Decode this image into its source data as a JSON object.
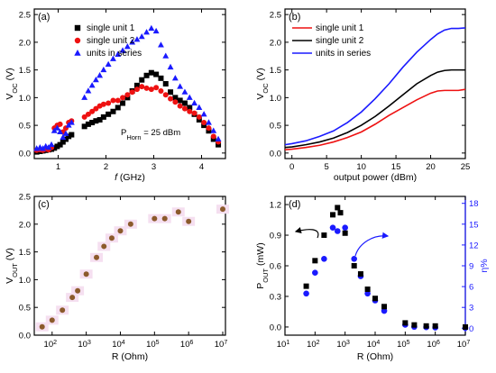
{
  "chart_data": [
    {
      "panel": "(a)",
      "type": "scatter",
      "xlabel": "f (GHz)",
      "ylabel": "V_OC (V)",
      "xlim": [
        0.5,
        4.5
      ],
      "ylim": [
        -0.1,
        2.6
      ],
      "xticks": [
        "1",
        "2",
        "3",
        "4"
      ],
      "yticks": [
        "0.0",
        "0.5",
        "1.0",
        "1.5",
        "2.0",
        "2.5"
      ],
      "annotation": "P_Horn = 25 dBm",
      "legend": "top-left",
      "series": [
        {
          "name": "single unit 1",
          "color": "#000000",
          "marker": "square",
          "x": [
            0.55,
            0.62,
            0.68,
            0.74,
            0.8,
            0.86,
            0.92,
            0.98,
            1.04,
            1.1,
            1.16,
            1.22,
            1.28,
            1.55,
            1.63,
            1.71,
            1.79,
            1.87,
            1.95,
            2.05,
            2.15,
            2.25,
            2.35,
            2.45,
            2.55,
            2.65,
            2.75,
            2.85,
            2.95,
            3.05,
            3.15,
            3.25,
            3.35,
            3.45,
            3.55,
            3.65,
            3.75,
            3.85,
            3.95,
            4.05,
            4.15,
            4.25,
            4.35
          ],
          "y": [
            0.02,
            0.03,
            0.04,
            0.05,
            0.06,
            0.07,
            0.09,
            0.12,
            0.15,
            0.2,
            0.25,
            0.3,
            0.33,
            0.48,
            0.52,
            0.55,
            0.58,
            0.6,
            0.65,
            0.7,
            0.75,
            0.82,
            0.9,
            1.0,
            1.12,
            1.22,
            1.32,
            1.4,
            1.45,
            1.42,
            1.35,
            1.25,
            1.1,
            1.0,
            0.95,
            0.9,
            0.82,
            0.7,
            0.6,
            0.5,
            0.4,
            0.25,
            0.15
          ]
        },
        {
          "name": "single unit 2",
          "color": "#ee1111",
          "marker": "circle",
          "x": [
            0.55,
            0.62,
            0.68,
            0.74,
            0.8,
            0.86,
            0.92,
            0.98,
            1.04,
            1.1,
            1.16,
            1.22,
            1.28,
            1.55,
            1.63,
            1.71,
            1.79,
            1.87,
            1.95,
            2.05,
            2.15,
            2.25,
            2.35,
            2.45,
            2.55,
            2.65,
            2.75,
            2.85,
            2.95,
            3.05,
            3.15,
            3.25,
            3.35,
            3.45,
            3.55,
            3.65,
            3.75,
            3.85,
            3.95,
            4.05,
            4.15,
            4.25,
            4.35
          ],
          "y": [
            0.05,
            0.06,
            0.05,
            0.07,
            0.06,
            0.1,
            0.45,
            0.5,
            0.52,
            0.38,
            0.45,
            0.55,
            0.58,
            0.65,
            0.7,
            0.75,
            0.8,
            0.85,
            0.88,
            0.9,
            0.95,
            0.95,
            1.0,
            1.05,
            1.1,
            1.15,
            1.2,
            1.17,
            1.15,
            1.18,
            1.12,
            1.05,
            0.98,
            0.92,
            0.85,
            0.8,
            0.75,
            0.72,
            0.65,
            0.55,
            0.45,
            0.3,
            0.2
          ]
        },
        {
          "name": "units in series",
          "color": "#1a1aff",
          "marker": "triangle",
          "x": [
            0.55,
            0.62,
            0.68,
            0.74,
            0.8,
            0.86,
            0.92,
            0.98,
            1.04,
            1.1,
            1.16,
            1.22,
            1.28,
            1.55,
            1.63,
            1.71,
            1.79,
            1.87,
            1.95,
            2.05,
            2.15,
            2.25,
            2.35,
            2.45,
            2.55,
            2.65,
            2.75,
            2.85,
            2.95,
            3.05,
            3.15,
            3.25,
            3.35,
            3.45,
            3.55,
            3.65,
            3.75,
            3.85,
            3.95,
            4.05,
            4.15,
            4.25,
            4.35
          ],
          "y": [
            0.08,
            0.1,
            0.08,
            0.12,
            0.1,
            0.15,
            0.4,
            0.45,
            0.38,
            0.28,
            0.35,
            0.5,
            0.55,
            1.0,
            1.12,
            1.22,
            1.32,
            1.4,
            1.5,
            1.6,
            1.7,
            1.78,
            1.85,
            1.92,
            2.0,
            2.05,
            2.1,
            2.18,
            2.25,
            2.2,
            1.95,
            1.75,
            1.55,
            1.35,
            1.2,
            1.1,
            1.0,
            0.9,
            0.82,
            0.7,
            0.55,
            0.4,
            0.25
          ]
        }
      ]
    },
    {
      "panel": "(b)",
      "type": "line",
      "xlabel": "output power (dBm)",
      "ylabel": "V_OC (V)",
      "xlim": [
        -1,
        25
      ],
      "ylim": [
        -0.1,
        2.6
      ],
      "xticks": [
        "0",
        "5",
        "10",
        "15",
        "20",
        "25"
      ],
      "yticks": [
        "0.0",
        "0.5",
        "1.0",
        "1.5",
        "2.0",
        "2.5"
      ],
      "legend": "top-left",
      "series": [
        {
          "name": "single unit 1",
          "color": "#ee1111",
          "x": [
            -1,
            0,
            2,
            4,
            6,
            8,
            10,
            12,
            14,
            16,
            18,
            20,
            21,
            22,
            23,
            24,
            25
          ],
          "y": [
            0.06,
            0.07,
            0.1,
            0.14,
            0.2,
            0.28,
            0.38,
            0.52,
            0.68,
            0.82,
            0.96,
            1.08,
            1.12,
            1.13,
            1.13,
            1.13,
            1.15
          ]
        },
        {
          "name": "single unit 2",
          "color": "#000000",
          "x": [
            -1,
            0,
            2,
            4,
            6,
            8,
            10,
            12,
            14,
            16,
            18,
            20,
            21,
            22,
            23,
            24,
            25
          ],
          "y": [
            0.1,
            0.11,
            0.15,
            0.2,
            0.27,
            0.37,
            0.5,
            0.66,
            0.85,
            1.05,
            1.25,
            1.4,
            1.46,
            1.49,
            1.5,
            1.5,
            1.5
          ]
        },
        {
          "name": "units in series",
          "color": "#1a1aff",
          "x": [
            -1,
            0,
            2,
            4,
            6,
            8,
            10,
            12,
            14,
            16,
            18,
            20,
            21,
            22,
            23,
            24,
            25
          ],
          "y": [
            0.15,
            0.17,
            0.22,
            0.3,
            0.4,
            0.55,
            0.74,
            0.98,
            1.25,
            1.55,
            1.82,
            2.05,
            2.15,
            2.22,
            2.25,
            2.25,
            2.26
          ]
        }
      ]
    },
    {
      "panel": "(c)",
      "type": "scatter",
      "xlabel": "R (Ohm)",
      "ylabel": "V_OUT (V)",
      "xscale": "log",
      "xlim": [
        30,
        12000000
      ],
      "ylim": [
        0,
        2.5
      ],
      "xtick_exponents": [
        2,
        3,
        4,
        5,
        6,
        7
      ],
      "yticks": [
        "0.0",
        "0.5",
        "1.0",
        "1.5",
        "2.0",
        "2.5"
      ],
      "series": [
        {
          "color": "#8b5a2b",
          "marker": "circle",
          "x": [
            51,
            100,
            200,
            390,
            560,
            1000,
            2000,
            3300,
            5600,
            10000,
            20000,
            100000,
            200000,
            500000,
            1000000,
            10000000
          ],
          "y": [
            0.15,
            0.27,
            0.45,
            0.68,
            0.8,
            1.1,
            1.4,
            1.6,
            1.75,
            1.88,
            2.0,
            2.1,
            2.1,
            2.22,
            2.05,
            2.27
          ]
        }
      ]
    },
    {
      "panel": "(d)",
      "type": "scatter",
      "xlabel": "R (Ohm)",
      "ylabel": "P_OUT (mW)",
      "ylabel_right": "η%",
      "xscale": "log",
      "xlim": [
        10,
        10000000
      ],
      "ylim": [
        -0.08,
        1.28
      ],
      "ylim_right": [
        -1,
        19
      ],
      "xtick_exponents": [
        1,
        2,
        3,
        4,
        5,
        6,
        7
      ],
      "yticks": [
        "0.0",
        "0.3",
        "0.6",
        "0.9",
        "1.2"
      ],
      "yticks_right": [
        "0",
        "3",
        "6",
        "9",
        "12",
        "15",
        "18"
      ],
      "series": [
        {
          "color": "#000000",
          "marker": "square",
          "axis": "left",
          "x": [
            51,
            100,
            200,
            390,
            560,
            700,
            1000,
            2000,
            3300,
            5600,
            10000,
            20000,
            100000,
            200000,
            500000,
            1000000,
            10000000
          ],
          "y": [
            0.4,
            0.65,
            0.9,
            1.1,
            1.17,
            1.12,
            0.92,
            0.6,
            0.52,
            0.37,
            0.28,
            0.2,
            0.04,
            0.02,
            0.01,
            0.01,
            0.0
          ]
        },
        {
          "color": "#1a1aff",
          "marker": "circle",
          "axis": "right",
          "x": [
            51,
            100,
            200,
            390,
            560,
            1000,
            2000,
            3300,
            5600,
            10000,
            20000,
            100000,
            200000,
            500000,
            1000000,
            10000000
          ],
          "y": [
            5,
            8,
            10,
            14.5,
            14,
            14.5,
            10,
            7.5,
            5,
            4,
            2.5,
            0.5,
            0.2,
            0.15,
            0.1,
            0.05
          ]
        }
      ]
    }
  ]
}
